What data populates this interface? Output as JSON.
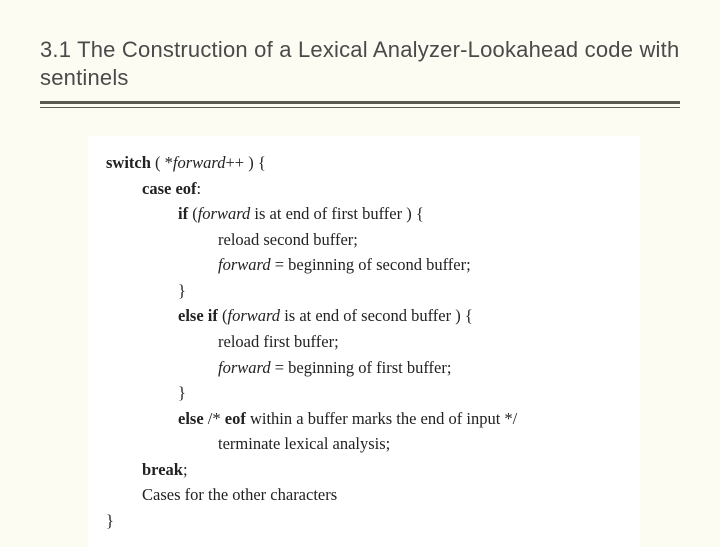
{
  "slide": {
    "background_color": "#fdfcf2",
    "code_background_color": "#ffffff",
    "title_color": "#4a4a4a",
    "divider_color": "#5a5a50",
    "title": "3.1 The Construction of a Lexical Analyzer-Lookahead code with sentinels",
    "title_fontsize": 22,
    "code_fontsize": 16.5,
    "code": {
      "l1": {
        "kw": "switch",
        "rest": " ( *",
        "ital": "forward",
        "tail": "++ ) {"
      },
      "l2": {
        "kw": "case eof",
        "tail": ":"
      },
      "l3": {
        "kw": "if",
        "open": " (",
        "ital": "forward",
        "rest": " is at end of first buffer ) {"
      },
      "l4": "reload second buffer;",
      "l5": {
        "ital": "forward",
        "tail": " = beginning of second buffer;"
      },
      "l6": "}",
      "l7": {
        "kw": "else if",
        "open": " (",
        "ital": "forward",
        "rest": " is at end of second buffer ) {"
      },
      "l8": "reload first buffer;",
      "l9": {
        "ital": "forward",
        "tail": " = beginning of first buffer;"
      },
      "l10": "}",
      "l11": {
        "kw": "else",
        "c1": " /* ",
        "kwe": "eof",
        "rest": " within a buffer marks the end of input */"
      },
      "l12": "terminate lexical analysis;",
      "l13": {
        "kw": "break",
        "tail": ";"
      },
      "l14": "Cases for the other characters",
      "l15": "}"
    }
  }
}
